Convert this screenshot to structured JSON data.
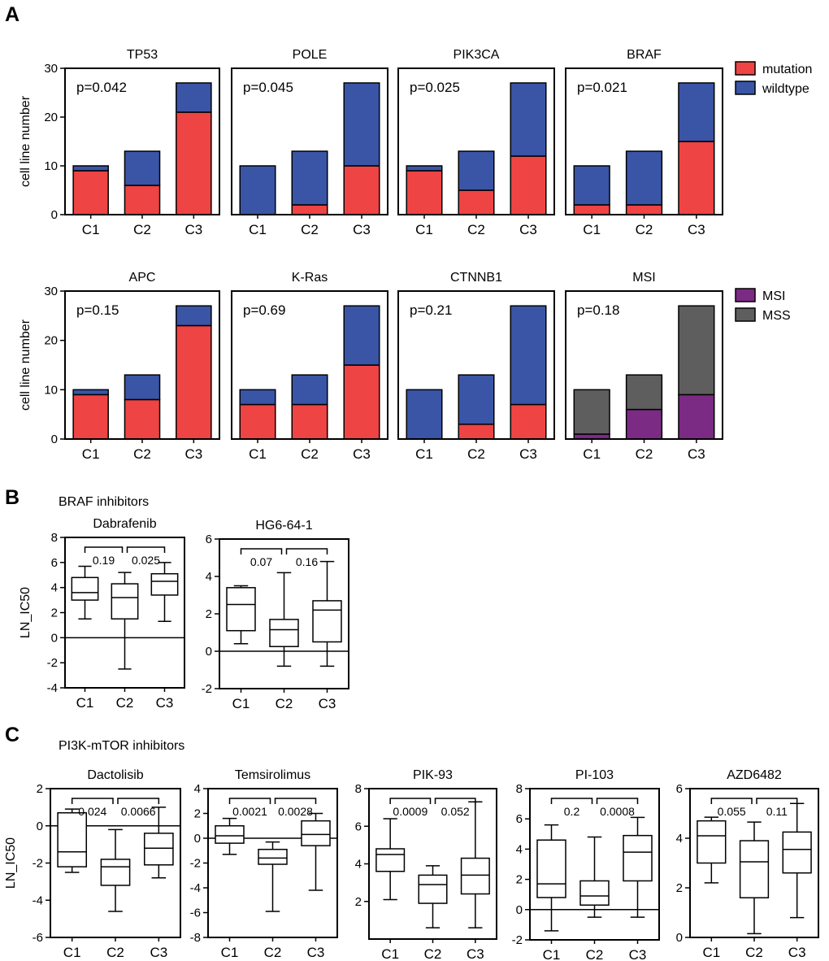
{
  "panels": {
    "A": {
      "letter": "A"
    },
    "B": {
      "letter": "B",
      "title": "BRAF inhibitors"
    },
    "C": {
      "letter": "C",
      "title": "PI3K-mTOR inhibitors"
    }
  },
  "colors": {
    "mutation": "#EE4444",
    "wildtype": "#3A55A6",
    "MSI": "#7B2B84",
    "MSS": "#5E5E5E",
    "axis": "#000000"
  },
  "legends": {
    "mutation_status": [
      {
        "label": "mutation",
        "color_key": "mutation"
      },
      {
        "label": "wildtype",
        "color_key": "wildtype"
      }
    ],
    "msi_status": [
      {
        "label": "MSI",
        "color_key": "MSI"
      },
      {
        "label": "MSS",
        "color_key": "MSS"
      }
    ]
  },
  "chart_data": [
    {
      "type": "bar",
      "stacked": true,
      "title": "TP53",
      "annotation": "p=0.042",
      "ylabel": "cell line number",
      "ylim": [
        0,
        30
      ],
      "yticks": [
        0,
        10,
        20,
        30
      ],
      "categories": [
        "C1",
        "C2",
        "C3"
      ],
      "series": [
        {
          "name": "mutation",
          "values": [
            9,
            6,
            21
          ]
        },
        {
          "name": "wildtype",
          "values": [
            1,
            7,
            6
          ]
        }
      ]
    },
    {
      "type": "bar",
      "stacked": true,
      "title": "POLE",
      "annotation": "p=0.045",
      "ylabel": "",
      "ylim": [
        0,
        30
      ],
      "yticks": [],
      "categories": [
        "C1",
        "C2",
        "C3"
      ],
      "series": [
        {
          "name": "mutation",
          "values": [
            0,
            2,
            10
          ]
        },
        {
          "name": "wildtype",
          "values": [
            10,
            11,
            17
          ]
        }
      ]
    },
    {
      "type": "bar",
      "stacked": true,
      "title": "PIK3CA",
      "annotation": "p=0.025",
      "ylabel": "",
      "ylim": [
        0,
        30
      ],
      "yticks": [],
      "categories": [
        "C1",
        "C2",
        "C3"
      ],
      "series": [
        {
          "name": "mutation",
          "values": [
            9,
            5,
            12
          ]
        },
        {
          "name": "wildtype",
          "values": [
            1,
            8,
            15
          ]
        }
      ]
    },
    {
      "type": "bar",
      "stacked": true,
      "title": "BRAF",
      "annotation": "p=0.021",
      "ylabel": "",
      "ylim": [
        0,
        30
      ],
      "yticks": [],
      "categories": [
        "C1",
        "C2",
        "C3"
      ],
      "series": [
        {
          "name": "mutation",
          "values": [
            2,
            2,
            15
          ]
        },
        {
          "name": "wildtype",
          "values": [
            8,
            11,
            12
          ]
        }
      ]
    },
    {
      "type": "bar",
      "stacked": true,
      "title": "APC",
      "annotation": "p=0.15",
      "ylabel": "cell line number",
      "ylim": [
        0,
        30
      ],
      "yticks": [
        0,
        10,
        20,
        30
      ],
      "categories": [
        "C1",
        "C2",
        "C3"
      ],
      "series": [
        {
          "name": "mutation",
          "values": [
            9,
            8,
            23
          ]
        },
        {
          "name": "wildtype",
          "values": [
            1,
            5,
            4
          ]
        }
      ]
    },
    {
      "type": "bar",
      "stacked": true,
      "title": "K-Ras",
      "annotation": "p=0.69",
      "ylabel": "",
      "ylim": [
        0,
        30
      ],
      "yticks": [],
      "categories": [
        "C1",
        "C2",
        "C3"
      ],
      "series": [
        {
          "name": "mutation",
          "values": [
            7,
            7,
            15
          ]
        },
        {
          "name": "wildtype",
          "values": [
            3,
            6,
            12
          ]
        }
      ]
    },
    {
      "type": "bar",
      "stacked": true,
      "title": "CTNNB1",
      "annotation": "p=0.21",
      "ylabel": "",
      "ylim": [
        0,
        30
      ],
      "yticks": [],
      "categories": [
        "C1",
        "C2",
        "C3"
      ],
      "series": [
        {
          "name": "mutation",
          "values": [
            0,
            3,
            7
          ]
        },
        {
          "name": "wildtype",
          "values": [
            10,
            10,
            20
          ]
        }
      ]
    },
    {
      "type": "bar",
      "stacked": true,
      "title": "MSI",
      "annotation": "p=0.18",
      "ylabel": "",
      "ylim": [
        0,
        30
      ],
      "yticks": [],
      "categories": [
        "C1",
        "C2",
        "C3"
      ],
      "series": [
        {
          "name": "MSI",
          "values": [
            1,
            6,
            9
          ]
        },
        {
          "name": "MSS",
          "values": [
            9,
            7,
            18
          ]
        }
      ]
    },
    {
      "type": "box",
      "title": "Dabrafenib",
      "ylabel": "LN_IC50",
      "ylim": [
        -4,
        8
      ],
      "yticks": [
        -4,
        -2,
        0,
        2,
        4,
        6,
        8
      ],
      "zero_line": true,
      "categories": [
        "C1",
        "C2",
        "C3"
      ],
      "boxes": [
        {
          "min": 1.5,
          "q1": 3.0,
          "median": 3.6,
          "q3": 4.8,
          "max": 5.7
        },
        {
          "min": -2.5,
          "q1": 1.5,
          "median": 3.2,
          "q3": 4.3,
          "max": 5.2
        },
        {
          "min": 1.3,
          "q1": 3.4,
          "median": 4.5,
          "q3": 5.1,
          "max": 6.0
        }
      ],
      "comparisons": [
        {
          "label": "0.19",
          "from": 0,
          "to": 1
        },
        {
          "label": "0.025",
          "from": 1,
          "to": 2
        }
      ]
    },
    {
      "type": "box",
      "title": "HG6-64-1",
      "ylabel": "",
      "ylim": [
        -2,
        6
      ],
      "yticks": [
        -2,
        0,
        2,
        4,
        6
      ],
      "zero_line": true,
      "categories": [
        "C1",
        "C2",
        "C3"
      ],
      "boxes": [
        {
          "min": 0.4,
          "q1": 1.1,
          "median": 2.5,
          "q3": 3.4,
          "max": 3.5
        },
        {
          "min": -0.8,
          "q1": 0.25,
          "median": 1.15,
          "q3": 1.7,
          "max": 4.2
        },
        {
          "min": -0.8,
          "q1": 0.5,
          "median": 2.2,
          "q3": 2.7,
          "max": 4.8
        }
      ],
      "comparisons": [
        {
          "label": "0.07",
          "from": 0,
          "to": 1
        },
        {
          "label": "0.16",
          "from": 1,
          "to": 2
        }
      ]
    },
    {
      "type": "box",
      "title": "Dactolisib",
      "ylabel": "LN_IC50",
      "ylim": [
        -6,
        2
      ],
      "yticks": [
        -6,
        -4,
        -2,
        0,
        2
      ],
      "zero_line": true,
      "categories": [
        "C1",
        "C2",
        "C3"
      ],
      "boxes": [
        {
          "min": -2.5,
          "q1": -2.2,
          "median": -1.4,
          "q3": 0.7,
          "max": 0.9
        },
        {
          "min": -4.6,
          "q1": -3.2,
          "median": -2.2,
          "q3": -1.8,
          "max": -0.2
        },
        {
          "min": -2.8,
          "q1": -2.1,
          "median": -1.2,
          "q3": -0.4,
          "max": 1.0
        }
      ],
      "comparisons": [
        {
          "label": "0.024",
          "from": 0,
          "to": 1
        },
        {
          "label": "0.0066",
          "from": 1,
          "to": 2
        }
      ]
    },
    {
      "type": "box",
      "title": "Temsirolimus",
      "ylabel": "",
      "ylim": [
        -8,
        4
      ],
      "yticks": [
        -8,
        -6,
        -4,
        -2,
        0,
        2,
        4
      ],
      "zero_line": true,
      "categories": [
        "C1",
        "C2",
        "C3"
      ],
      "boxes": [
        {
          "min": -1.3,
          "q1": -0.4,
          "median": 0.2,
          "q3": 1.0,
          "max": 1.6
        },
        {
          "min": -5.9,
          "q1": -2.1,
          "median": -1.6,
          "q3": -0.9,
          "max": -0.3
        },
        {
          "min": -4.2,
          "q1": -0.6,
          "median": 0.3,
          "q3": 1.4,
          "max": 2.0
        }
      ],
      "comparisons": [
        {
          "label": "0.0021",
          "from": 0,
          "to": 1
        },
        {
          "label": "0.0028",
          "from": 1,
          "to": 2
        }
      ]
    },
    {
      "type": "box",
      "title": "PIK-93",
      "ylabel": "",
      "ylim": [
        0,
        8
      ],
      "yticks": [
        2,
        4,
        6,
        8
      ],
      "zero_line": false,
      "categories": [
        "C1",
        "C2",
        "C3"
      ],
      "boxes": [
        {
          "min": 2.1,
          "q1": 3.6,
          "median": 4.5,
          "q3": 4.8,
          "max": 6.4
        },
        {
          "min": 0.6,
          "q1": 1.9,
          "median": 2.9,
          "q3": 3.4,
          "max": 3.9
        },
        {
          "min": 0.6,
          "q1": 2.4,
          "median": 3.4,
          "q3": 4.3,
          "max": 7.3
        }
      ],
      "comparisons": [
        {
          "label": "0.0009",
          "from": 0,
          "to": 1
        },
        {
          "label": "0.052",
          "from": 1,
          "to": 2
        }
      ]
    },
    {
      "type": "box",
      "title": "PI-103",
      "ylabel": "",
      "ylim": [
        -2,
        8
      ],
      "yticks": [
        -2,
        0,
        2,
        4,
        6,
        8
      ],
      "zero_line": true,
      "categories": [
        "C1",
        "C2",
        "C3"
      ],
      "boxes": [
        {
          "min": -1.4,
          "q1": 0.8,
          "median": 1.7,
          "q3": 4.6,
          "max": 5.6
        },
        {
          "min": -0.5,
          "q1": 0.3,
          "median": 0.9,
          "q3": 1.9,
          "max": 4.8
        },
        {
          "min": -0.5,
          "q1": 1.9,
          "median": 3.8,
          "q3": 4.9,
          "max": 6.1
        }
      ],
      "comparisons": [
        {
          "label": "0.2",
          "from": 0,
          "to": 1
        },
        {
          "label": "0.0008",
          "from": 1,
          "to": 2
        }
      ]
    },
    {
      "type": "box",
      "title": "AZD6482",
      "ylabel": "",
      "ylim": [
        0,
        6
      ],
      "yticks": [
        0,
        2,
        4,
        6
      ],
      "zero_line": false,
      "categories": [
        "C1",
        "C2",
        "C3"
      ],
      "boxes": [
        {
          "min": 2.2,
          "q1": 3.0,
          "median": 4.1,
          "q3": 4.7,
          "max": 4.85
        },
        {
          "min": 0.15,
          "q1": 1.6,
          "median": 3.05,
          "q3": 3.9,
          "max": 4.65
        },
        {
          "min": 0.8,
          "q1": 2.6,
          "median": 3.55,
          "q3": 4.25,
          "max": 5.4
        }
      ],
      "comparisons": [
        {
          "label": "0.055",
          "from": 0,
          "to": 1
        },
        {
          "label": "0.11",
          "from": 1,
          "to": 2
        }
      ]
    }
  ]
}
